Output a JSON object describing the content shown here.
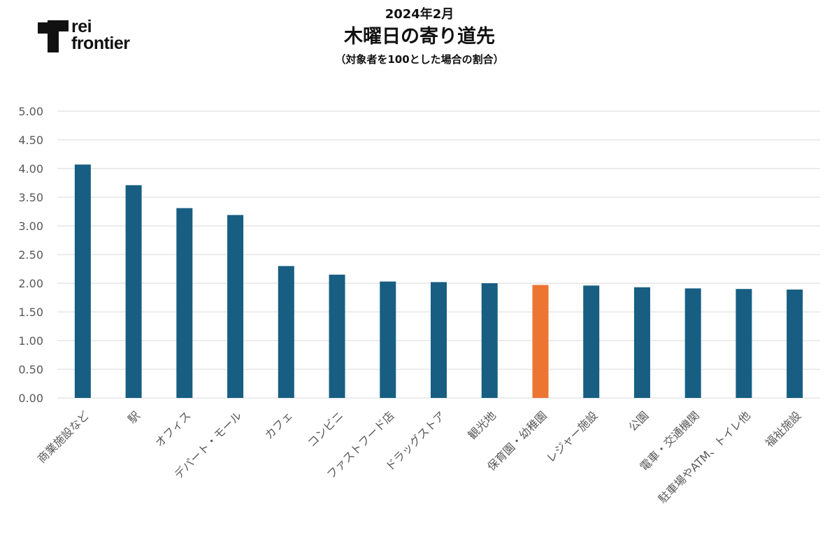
{
  "header": {
    "logo_line1": "rei",
    "logo_line2": "frontier",
    "date_title": "2024年2月",
    "title": "木曜日の寄り道先",
    "subtitle": "（対象者を100とした場合の割合）"
  },
  "colors": {
    "bar": "#175E82",
    "highlight": "#ED7532",
    "grid": "#D9D9D9",
    "axis_text": "#595959"
  },
  "chart_data": {
    "type": "bar",
    "title": "木曜日の寄り道先",
    "xlabel": "",
    "ylabel": "",
    "ylim": [
      0,
      5
    ],
    "yticks": [
      "0.00",
      "0.50",
      "1.00",
      "1.50",
      "2.00",
      "2.50",
      "3.00",
      "3.50",
      "4.00",
      "4.50",
      "5.00"
    ],
    "grid": true,
    "legend": "none",
    "highlight_category": "保育園・幼稚園",
    "categories": [
      "商業施設など",
      "駅",
      "オフィス",
      "デパート・モール",
      "カフェ",
      "コンビニ",
      "ファストフード店",
      "ドラッグストア",
      "観光地",
      "保育園・幼稚園",
      "レジャー施設",
      "公園",
      "電車・交通機関",
      "駐車場やATM、トイレ他",
      "福祉施設"
    ],
    "values": [
      4.07,
      3.71,
      3.31,
      3.19,
      2.3,
      2.15,
      2.03,
      2.02,
      2.0,
      1.97,
      1.96,
      1.93,
      1.91,
      1.9,
      1.89
    ]
  }
}
